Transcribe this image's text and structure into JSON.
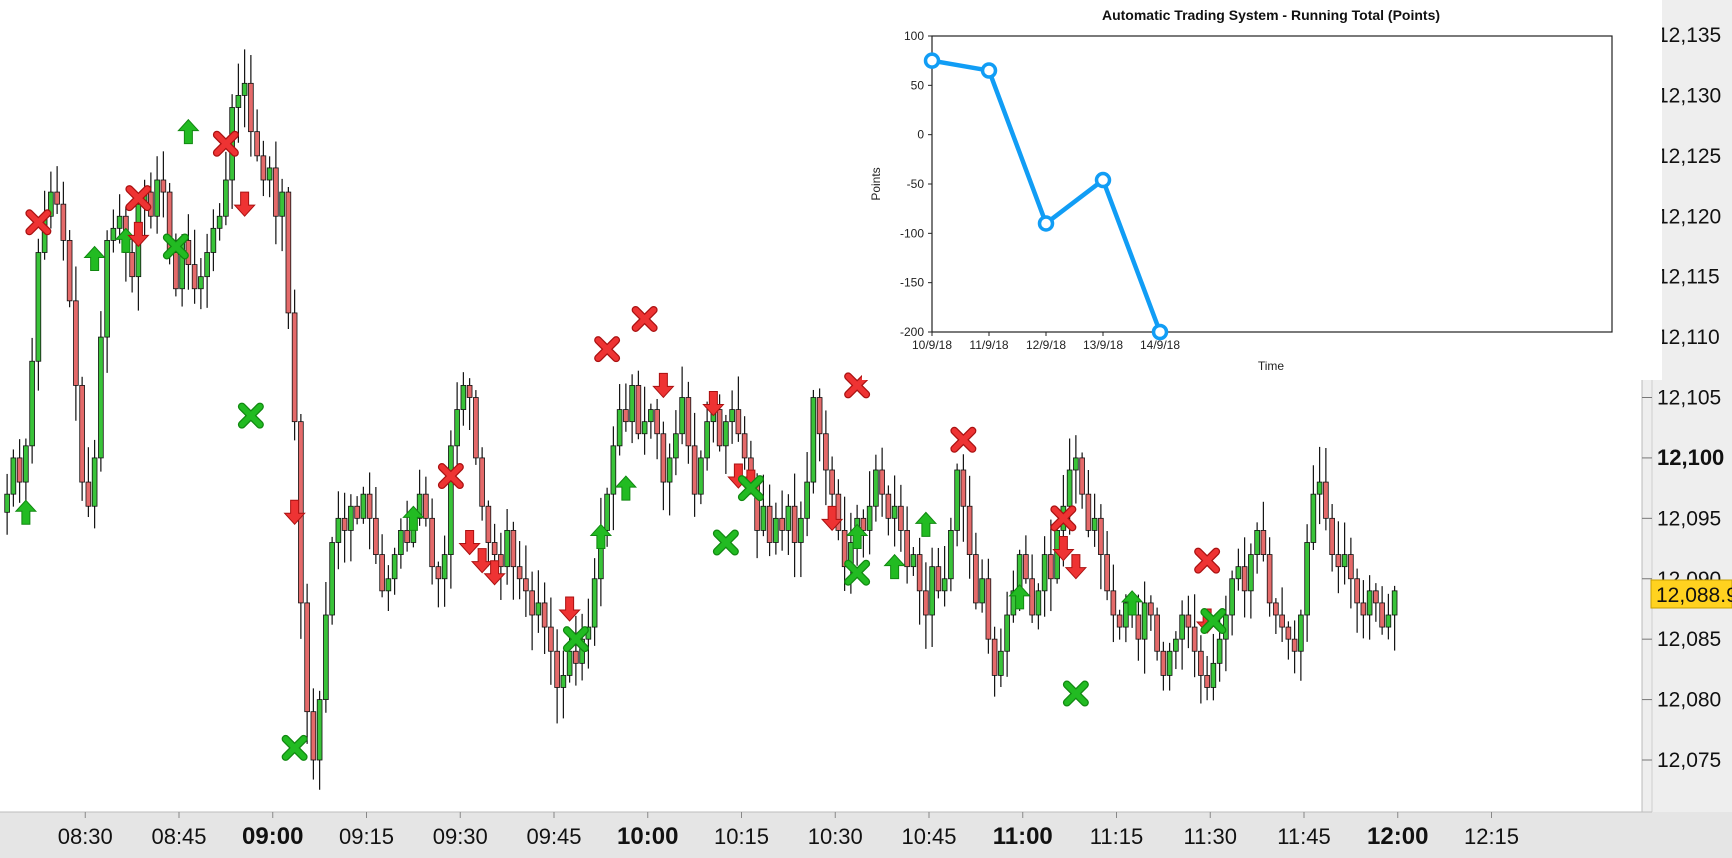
{
  "chart_data": [
    {
      "type": "candlestick",
      "title": "",
      "price_axis": {
        "ticks": [
          "12,075",
          "12,080",
          "12,085",
          "12,090",
          "12,095",
          "12,100",
          "12,105",
          "12,110",
          "12,115",
          "12,120",
          "12,125",
          "12,130",
          "12,135"
        ],
        "bold_tick": "12,100",
        "range": [
          12070,
          12138
        ]
      },
      "current_price_label": "12,088.9",
      "time_axis": {
        "ticks": [
          {
            "label": "08:30",
            "bold": false
          },
          {
            "label": "08:45",
            "bold": false
          },
          {
            "label": "09:00",
            "bold": true
          },
          {
            "label": "09:15",
            "bold": false
          },
          {
            "label": "09:30",
            "bold": false
          },
          {
            "label": "09:45",
            "bold": false
          },
          {
            "label": "10:00",
            "bold": true
          },
          {
            "label": "10:15",
            "bold": false
          },
          {
            "label": "10:30",
            "bold": false
          },
          {
            "label": "10:45",
            "bold": false
          },
          {
            "label": "11:00",
            "bold": true
          },
          {
            "label": "11:15",
            "bold": false
          },
          {
            "label": "11:30",
            "bold": false
          },
          {
            "label": "11:45",
            "bold": false
          },
          {
            "label": "12:00",
            "bold": true
          },
          {
            "label": "12:15",
            "bold": false
          }
        ]
      },
      "bar_minutes": 1,
      "first_bar_time": "08:17",
      "closes": [
        12097,
        12100,
        12098,
        12101,
        12108,
        12117,
        12120,
        12122,
        12121,
        12118,
        12113,
        12106,
        12098,
        12096,
        12100,
        12110,
        12118,
        12119,
        12120,
        12117,
        12115,
        12121,
        12122,
        12120,
        12123,
        12122,
        12117,
        12114,
        12118,
        12116,
        12114,
        12115,
        12117,
        12119,
        12120,
        12123,
        12129,
        12130,
        12131,
        12127,
        12125,
        12123,
        12124,
        12120,
        12122,
        12112,
        12103,
        12088,
        12079,
        12075,
        12080,
        12087,
        12093,
        12095,
        12094,
        12096,
        12095,
        12097,
        12095,
        12092,
        12089,
        12090,
        12092,
        12094,
        12093,
        12095,
        12097,
        12095,
        12091,
        12090,
        12092,
        12101,
        12104,
        12106,
        12105,
        12100,
        12096,
        12093,
        12092,
        12091,
        12094,
        12091,
        12090,
        12089,
        12087,
        12088,
        12086,
        12084,
        12081,
        12082,
        12084,
        12083,
        12085,
        12086,
        12090,
        12094,
        12097,
        12101,
        12104,
        12103,
        12106,
        12102,
        12103,
        12104,
        12102,
        12098,
        12100,
        12102,
        12105,
        12101,
        12097,
        12100,
        12103,
        12104,
        12101,
        12103,
        12104,
        12102,
        12100,
        12098,
        12094,
        12096,
        12093,
        12095,
        12094,
        12096,
        12093,
        12095,
        12098,
        12105,
        12102,
        12099,
        12097,
        12094,
        12091,
        12093,
        12095,
        12094,
        12096,
        12099,
        12097,
        12095,
        12096,
        12094,
        12091,
        12092,
        12089,
        12087,
        12091,
        12089,
        12090,
        12094,
        12099,
        12096,
        12092,
        12088,
        12090,
        12085,
        12082,
        12084,
        12087,
        12089,
        12092,
        12090,
        12087,
        12089,
        12092,
        12090,
        12094,
        12096,
        12099,
        12100,
        12097,
        12094,
        12095,
        12092,
        12089,
        12087,
        12086,
        12088,
        12087,
        12085,
        12088,
        12087,
        12084,
        12082,
        12084,
        12085,
        12087,
        12086,
        12084,
        12082,
        12081,
        12083,
        12085,
        12087,
        12090,
        12091,
        12089,
        12092,
        12094,
        12092,
        12088,
        12087,
        12086,
        12085,
        12084,
        12087,
        12093,
        12097,
        12098,
        12095,
        12092,
        12091,
        12092,
        12090,
        12088,
        12087,
        12089,
        12088,
        12086,
        12087,
        12089
      ],
      "signals": [
        {
          "label": "long entry",
          "shape": "arrow-up",
          "color": "#22bb22",
          "time": "08:20",
          "price": 12095.5
        },
        {
          "label": "short exit",
          "shape": "x",
          "color": "#ee3333",
          "time": "08:22",
          "price": 12119.5
        },
        {
          "label": "long entry",
          "shape": "arrow-up",
          "color": "#22bb22",
          "time": "08:31",
          "price": 12116.5
        },
        {
          "label": "long entry",
          "shape": "arrow-up",
          "color": "#22bb22",
          "time": "08:36",
          "price": 12118.0
        },
        {
          "label": "short exit",
          "shape": "x",
          "color": "#ee3333",
          "time": "08:38",
          "price": 12121.5
        },
        {
          "label": "short entry",
          "shape": "arrow-down",
          "color": "#ee3333",
          "time": "08:38",
          "price": 12118.5
        },
        {
          "label": "long exit",
          "shape": "x",
          "color": "#22bb22",
          "time": "08:44",
          "price": 12117.5
        },
        {
          "label": "long entry",
          "shape": "arrow-up",
          "color": "#22bb22",
          "time": "08:46",
          "price": 12127.0
        },
        {
          "label": "short exit",
          "shape": "x",
          "color": "#ee3333",
          "time": "08:52",
          "price": 12126.0
        },
        {
          "label": "short entry",
          "shape": "arrow-down",
          "color": "#ee3333",
          "time": "08:55",
          "price": 12121.0
        },
        {
          "label": "long exit",
          "shape": "x",
          "color": "#22bb22",
          "time": "08:56",
          "price": 12103.5
        },
        {
          "label": "short entry",
          "shape": "arrow-down",
          "color": "#ee3333",
          "time": "09:03",
          "price": 12095.5
        },
        {
          "label": "long exit",
          "shape": "x",
          "color": "#22bb22",
          "time": "09:03",
          "price": 12076.0
        },
        {
          "label": "long entry",
          "shape": "arrow-up",
          "color": "#22bb22",
          "time": "09:22",
          "price": 12095.0
        },
        {
          "label": "short exit",
          "shape": "x",
          "color": "#ee3333",
          "time": "09:28",
          "price": 12098.5
        },
        {
          "label": "short entry",
          "shape": "arrow-down",
          "color": "#ee3333",
          "time": "09:31",
          "price": 12093.0
        },
        {
          "label": "short entry",
          "shape": "arrow-down",
          "color": "#ee3333",
          "time": "09:33",
          "price": 12091.5
        },
        {
          "label": "short entry",
          "shape": "arrow-down",
          "color": "#ee3333",
          "time": "09:35",
          "price": 12090.5
        },
        {
          "label": "short entry",
          "shape": "arrow-down",
          "color": "#ee3333",
          "time": "09:47",
          "price": 12087.5
        },
        {
          "label": "long exit",
          "shape": "x",
          "color": "#22bb22",
          "time": "09:48",
          "price": 12085.0
        },
        {
          "label": "long entry",
          "shape": "arrow-up",
          "color": "#22bb22",
          "time": "09:52",
          "price": 12093.5
        },
        {
          "label": "short exit",
          "shape": "x",
          "color": "#ee3333",
          "time": "09:53",
          "price": 12109.0
        },
        {
          "label": "long entry",
          "shape": "arrow-up",
          "color": "#22bb22",
          "time": "09:56",
          "price": 12097.5
        },
        {
          "label": "short exit",
          "shape": "x",
          "color": "#ee3333",
          "time": "09:59",
          "price": 12111.5
        },
        {
          "label": "short entry",
          "shape": "arrow-down",
          "color": "#ee3333",
          "time": "10:02",
          "price": 12106.0
        },
        {
          "label": "short entry",
          "shape": "arrow-down",
          "color": "#ee3333",
          "time": "10:10",
          "price": 12104.5
        },
        {
          "label": "long exit",
          "shape": "x",
          "color": "#22bb22",
          "time": "10:12",
          "price": 12093.0
        },
        {
          "label": "short entry",
          "shape": "arrow-down",
          "color": "#ee3333",
          "time": "10:14",
          "price": 12098.5
        },
        {
          "label": "short entry",
          "shape": "arrow-down",
          "color": "#ee3333",
          "time": "10:16",
          "price": 12098.0
        },
        {
          "label": "long exit",
          "shape": "x",
          "color": "#22bb22",
          "time": "10:16",
          "price": 12097.5
        },
        {
          "label": "short entry",
          "shape": "arrow-down",
          "color": "#ee3333",
          "time": "10:29",
          "price": 12095.0
        },
        {
          "label": "long entry",
          "shape": "arrow-up",
          "color": "#22bb22",
          "time": "10:33",
          "price": 12093.5
        },
        {
          "label": "long exit",
          "shape": "x",
          "color": "#22bb22",
          "time": "10:33",
          "price": 12090.5
        },
        {
          "label": "short exit",
          "shape": "x",
          "color": "#ee3333",
          "time": "10:33",
          "price": 12106.0
        },
        {
          "label": "long entry",
          "shape": "arrow-up",
          "color": "#22bb22",
          "time": "10:39",
          "price": 12091.0
        },
        {
          "label": "long entry",
          "shape": "arrow-up",
          "color": "#22bb22",
          "time": "10:44",
          "price": 12094.5
        },
        {
          "label": "short exit",
          "shape": "x",
          "color": "#ee3333",
          "time": "10:50",
          "price": 12101.5
        },
        {
          "label": "long entry",
          "shape": "arrow-up",
          "color": "#22bb22",
          "time": "10:59",
          "price": 12088.5
        },
        {
          "label": "short exit",
          "shape": "x",
          "color": "#ee3333",
          "time": "11:06",
          "price": 12095.0
        },
        {
          "label": "short entry",
          "shape": "arrow-down",
          "color": "#ee3333",
          "time": "11:06",
          "price": 12092.5
        },
        {
          "label": "short entry",
          "shape": "arrow-down",
          "color": "#ee3333",
          "time": "11:08",
          "price": 12091.0
        },
        {
          "label": "long exit",
          "shape": "x",
          "color": "#22bb22",
          "time": "11:08",
          "price": 12080.5
        },
        {
          "label": "long entry",
          "shape": "arrow-up",
          "color": "#22bb22",
          "time": "11:17",
          "price": 12088.0
        },
        {
          "label": "short exit",
          "shape": "x",
          "color": "#ee3333",
          "time": "11:29",
          "price": 12091.5
        },
        {
          "label": "short entry",
          "shape": "arrow-down",
          "color": "#ee3333",
          "time": "11:29",
          "price": 12086.5
        },
        {
          "label": "long exit",
          "shape": "x",
          "color": "#22bb22",
          "time": "11:30",
          "price": 12086.5
        }
      ]
    },
    {
      "type": "line",
      "title": "Automatic Trading System - Running Total (Points)",
      "xlabel": "Time",
      "ylabel": "Points",
      "categories": [
        "10/9/18",
        "11/9/18",
        "12/9/18",
        "13/9/18",
        "14/9/18"
      ],
      "values": [
        75,
        65,
        -90,
        -46,
        -200
      ],
      "ylim": [
        -200,
        100
      ],
      "yticks": [
        "100",
        "50",
        "0",
        "-50",
        "-100",
        "-150",
        "-200"
      ],
      "color": "#119df5"
    }
  ]
}
